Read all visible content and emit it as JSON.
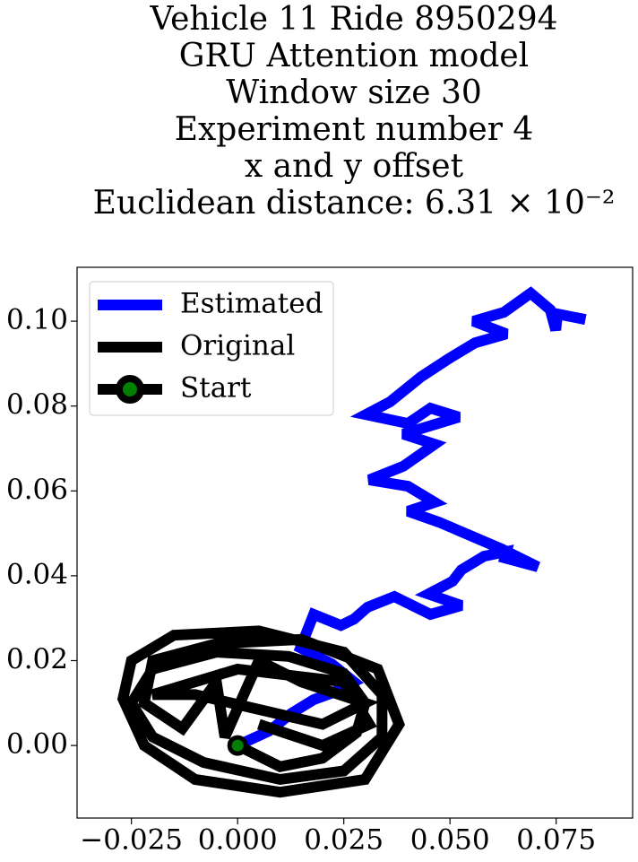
{
  "chart_data": {
    "type": "line",
    "title_lines": [
      "Vehicle 11 Ride 8950294",
      "GRU Attention model",
      "Window size 30",
      "Experiment number 4",
      "x and y offset",
      "Euclidean distance: 6.31 × 10⁻²"
    ],
    "xlim": [
      -0.0378,
      0.093
    ],
    "ylim": [
      -0.0171,
      0.1127
    ],
    "xticks": [
      {
        "value": -0.025,
        "label": "−0.025"
      },
      {
        "value": 0,
        "label": "0.000"
      },
      {
        "value": 0.025,
        "label": "0.025"
      },
      {
        "value": 0.05,
        "label": "0.050"
      },
      {
        "value": 0.075,
        "label": "0.075"
      }
    ],
    "yticks": [
      {
        "value": 0,
        "label": "0.00"
      },
      {
        "value": 0.02,
        "label": "0.02"
      },
      {
        "value": 0.04,
        "label": "0.04"
      },
      {
        "value": 0.06,
        "label": "0.06"
      },
      {
        "value": 0.08,
        "label": "0.08"
      },
      {
        "value": 0.1,
        "label": "0.10"
      }
    ],
    "legend": "upper left",
    "series": [
      {
        "name": "Estimated",
        "color": "#0000ff",
        "x": [
          0,
          0.0074,
          0.0127,
          0.0179,
          0.0226,
          0.0274,
          0.0222,
          0.0148,
          0.0179,
          0.0243,
          0.0274,
          0.0306,
          0.0369,
          0.0454,
          0.0527,
          0.0449,
          0.0506,
          0.0527,
          0.058,
          0.0633,
          0.0629,
          0.0707,
          0.0622,
          0.0475,
          0.0401,
          0.0464,
          0.0401,
          0.031,
          0.039,
          0.0464,
          0.039,
          0.0521,
          0.0454,
          0.0401,
          0.0302,
          0.0359,
          0.0432,
          0.0496,
          0.0559,
          0.0633,
          0.0555,
          0.0627,
          0.069,
          0.0736,
          0.0749,
          0.0753,
          0.0819
        ],
        "values": [
          0,
          0.0034,
          0.0076,
          0.0108,
          0.0125,
          0.015,
          0.0192,
          0.023,
          0.0309,
          0.0283,
          0.0298,
          0.0326,
          0.0351,
          0.0309,
          0.033,
          0.0357,
          0.0387,
          0.0414,
          0.0446,
          0.0457,
          0.0442,
          0.0421,
          0.0463,
          0.0526,
          0.0552,
          0.0573,
          0.0611,
          0.0626,
          0.0658,
          0.071,
          0.0734,
          0.0774,
          0.0795,
          0.0759,
          0.078,
          0.081,
          0.0869,
          0.0911,
          0.0949,
          0.097,
          0.1,
          0.1021,
          0.1066,
          0.1027,
          0.0979,
          0.1017,
          0.1004
        ]
      },
      {
        "name": "Original",
        "color": "#000000",
        "x": [
          0,
          0.01,
          0.02,
          0.028,
          0.03,
          0.025,
          0.012,
          -0.005,
          -0.02,
          -0.025,
          -0.02,
          -0.008,
          0.01,
          0.025,
          0.034,
          0.034,
          0.025,
          0.005,
          -0.015,
          -0.025,
          -0.027,
          -0.022,
          -0.01,
          0.01,
          0.03,
          0.038,
          0.033,
          0.015,
          -0.005,
          -0.02,
          -0.022,
          -0.013,
          -0.005,
          -0.003,
          0.005,
          0.015,
          0.03,
          0.02,
          -0.01,
          -0.02,
          0,
          0.025,
          0.031,
          0.02,
          0.005
        ],
        "values": [
          0,
          -0.005,
          -0.003,
          0.003,
          0.01,
          0.017,
          0.021,
          0.022,
          0.018,
          0.01,
          0.002,
          -0.004,
          -0.008,
          -0.006,
          0.002,
          0.012,
          0.022,
          0.027,
          0.026,
          0.02,
          0.011,
          0,
          -0.008,
          -0.011,
          -0.008,
          0.005,
          0.018,
          0.025,
          0.024,
          0.02,
          0.01,
          0.004,
          0.015,
          0.002,
          0.02,
          0.015,
          0.01,
          0.005,
          0.012,
          0.012,
          0.018,
          0.015,
          0.005,
          0,
          0.005
        ]
      },
      {
        "name": "Start",
        "color": "#000000",
        "marker_color": "#008000",
        "x": [
          0
        ],
        "values": [
          0
        ]
      }
    ]
  }
}
